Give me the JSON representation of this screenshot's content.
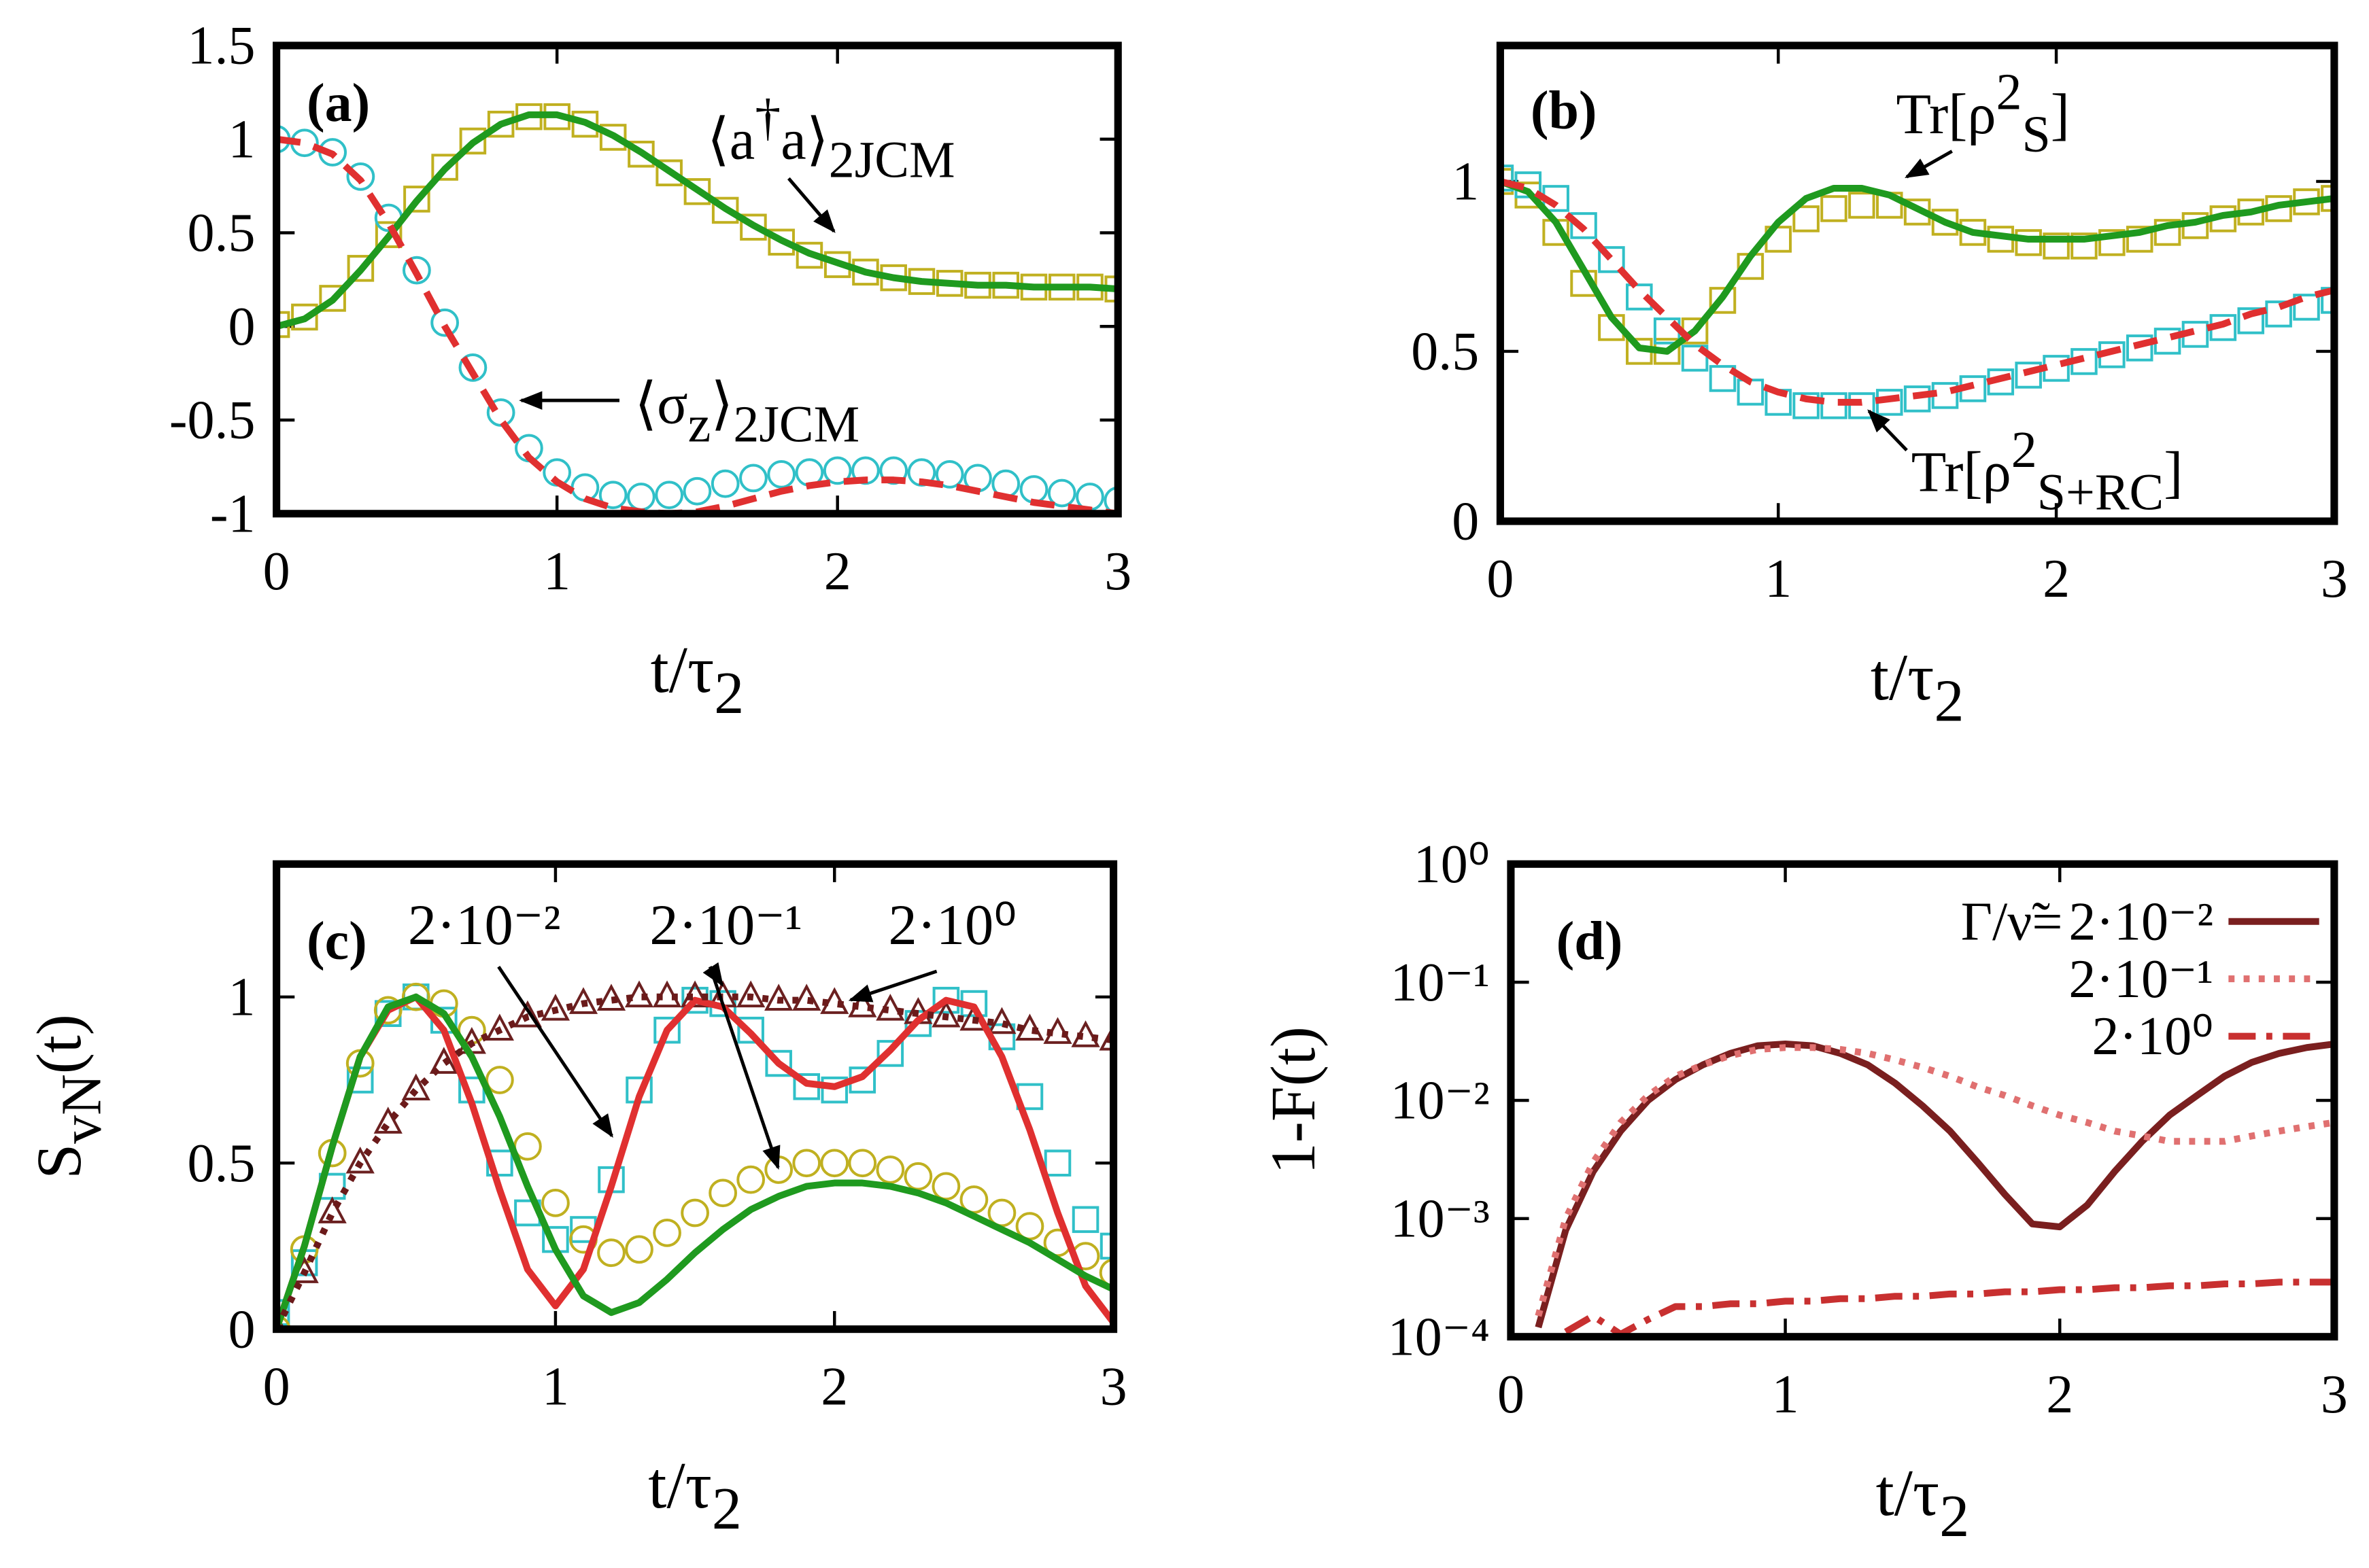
{
  "chart_data": [
    {
      "type": "line",
      "label": "(a)",
      "xlabel": [
        {
          "text": "t/τ"
        },
        {
          "text": "2",
          "shift": "sub"
        }
      ],
      "xlim": [
        0,
        3
      ],
      "ylim": [
        -1,
        1.5
      ],
      "xticks": [
        0,
        1,
        2,
        3
      ],
      "yticks": [
        -1,
        -0.5,
        0,
        0.5,
        1,
        1.5
      ],
      "x": [
        0,
        0.1,
        0.2,
        0.3,
        0.4,
        0.5,
        0.6,
        0.7,
        0.8,
        0.9,
        1,
        1.1,
        1.2,
        1.3,
        1.4,
        1.5,
        1.6,
        1.7,
        1.8,
        1.9,
        2,
        2.1,
        2.2,
        2.3,
        2.4,
        2.5,
        2.6,
        2.7,
        2.8,
        2.9,
        3
      ],
      "series": [
        {
          "color": "#c0b020",
          "marker": "square",
          "values": [
            0.01,
            0.05,
            0.15,
            0.31,
            0.49,
            0.68,
            0.85,
            0.99,
            1.08,
            1.12,
            1.12,
            1.08,
            1.01,
            0.92,
            0.82,
            0.72,
            0.62,
            0.53,
            0.45,
            0.38,
            0.33,
            0.29,
            0.26,
            0.24,
            0.23,
            0.22,
            0.22,
            0.21,
            0.21,
            0.21,
            0.2
          ]
        },
        {
          "color": "#30c0c8",
          "marker": "circle",
          "values": [
            1,
            0.98,
            0.93,
            0.8,
            0.58,
            0.3,
            0.02,
            -0.22,
            -0.46,
            -0.65,
            -0.78,
            -0.86,
            -0.9,
            -0.91,
            -0.9,
            -0.88,
            -0.84,
            -0.81,
            -0.79,
            -0.78,
            -0.77,
            -0.77,
            -0.77,
            -0.78,
            -0.79,
            -0.81,
            -0.84,
            -0.87,
            -0.89,
            -0.91,
            -0.93
          ]
        },
        {
          "color": "#1f9a1f",
          "values": [
            0,
            0.04,
            0.14,
            0.3,
            0.48,
            0.67,
            0.84,
            0.98,
            1.08,
            1.13,
            1.13,
            1.09,
            1.02,
            0.93,
            0.83,
            0.73,
            0.63,
            0.54,
            0.46,
            0.39,
            0.34,
            0.29,
            0.26,
            0.24,
            0.23,
            0.22,
            0.22,
            0.21,
            0.21,
            0.21,
            0.2
          ]
        },
        {
          "color": "#e03030",
          "dash": "dashed",
          "values": [
            1,
            0.98,
            0.92,
            0.78,
            0.55,
            0.28,
            0,
            -0.25,
            -0.5,
            -0.7,
            -0.83,
            -0.92,
            -0.97,
            -0.99,
            -1,
            -0.99,
            -0.96,
            -0.92,
            -0.88,
            -0.85,
            -0.83,
            -0.82,
            -0.82,
            -0.83,
            -0.85,
            -0.88,
            -0.91,
            -0.94,
            -0.96,
            -0.98,
            -1
          ]
        }
      ],
      "annotations": [
        [
          {
            "text": "⟨a"
          },
          {
            "text": "†",
            "shift": "sup"
          },
          {
            "text": "a⟩"
          },
          {
            "text": "2JCM",
            "shift": "sub"
          }
        ],
        [
          {
            "text": "⟨σ"
          },
          {
            "text": "z",
            "shift": "sub"
          },
          {
            "text": "⟩"
          },
          {
            "text": "2JCM",
            "shift": "sub"
          }
        ]
      ]
    },
    {
      "type": "line",
      "label": "(b)",
      "xlabel": [
        {
          "text": "t/τ"
        },
        {
          "text": "2",
          "shift": "sub"
        }
      ],
      "xlim": [
        0,
        3
      ],
      "ylim": [
        0,
        1.4
      ],
      "xticks": [
        0,
        1,
        2,
        3
      ],
      "yticks": [
        0,
        0.5,
        1
      ],
      "x": [
        0,
        0.1,
        0.2,
        0.3,
        0.4,
        0.5,
        0.6,
        0.7,
        0.8,
        0.9,
        1,
        1.1,
        1.2,
        1.3,
        1.4,
        1.5,
        1.6,
        1.7,
        1.8,
        1.9,
        2,
        2.1,
        2.2,
        2.3,
        2.4,
        2.5,
        2.6,
        2.7,
        2.8,
        2.9,
        3
      ],
      "series": [
        {
          "color": "#c0b020",
          "marker": "square",
          "values": [
            1,
            0.96,
            0.85,
            0.7,
            0.57,
            0.5,
            0.5,
            0.56,
            0.65,
            0.75,
            0.83,
            0.89,
            0.92,
            0.93,
            0.93,
            0.91,
            0.88,
            0.85,
            0.83,
            0.82,
            0.81,
            0.81,
            0.82,
            0.83,
            0.85,
            0.87,
            0.89,
            0.91,
            0.92,
            0.94,
            0.95
          ]
        },
        {
          "color": "#30c0c8",
          "marker": "square",
          "values": [
            1.01,
            0.99,
            0.95,
            0.87,
            0.77,
            0.66,
            0.56,
            0.48,
            0.42,
            0.38,
            0.35,
            0.34,
            0.34,
            0.34,
            0.35,
            0.36,
            0.37,
            0.39,
            0.41,
            0.43,
            0.45,
            0.47,
            0.49,
            0.51,
            0.53,
            0.55,
            0.57,
            0.59,
            0.61,
            0.63,
            0.65
          ]
        },
        {
          "color": "#1f9a1f",
          "values": [
            1,
            0.97,
            0.88,
            0.74,
            0.6,
            0.51,
            0.5,
            0.56,
            0.66,
            0.78,
            0.88,
            0.95,
            0.98,
            0.98,
            0.96,
            0.92,
            0.88,
            0.85,
            0.84,
            0.83,
            0.83,
            0.83,
            0.84,
            0.85,
            0.87,
            0.88,
            0.9,
            0.91,
            0.93,
            0.94,
            0.95
          ]
        },
        {
          "color": "#e03030",
          "dash": "dashed",
          "values": [
            1,
            0.98,
            0.93,
            0.86,
            0.77,
            0.68,
            0.6,
            0.52,
            0.46,
            0.41,
            0.38,
            0.36,
            0.35,
            0.35,
            0.36,
            0.37,
            0.38,
            0.4,
            0.42,
            0.44,
            0.46,
            0.48,
            0.5,
            0.52,
            0.54,
            0.56,
            0.58,
            0.61,
            0.63,
            0.66,
            0.68
          ]
        }
      ],
      "annotations": [
        [
          {
            "text": "Tr[ρ"
          },
          {
            "text": "2",
            "shift": "sup"
          },
          {
            "text": "S",
            "shift": "sub"
          },
          {
            "text": "]"
          }
        ],
        [
          {
            "text": "Tr[ρ"
          },
          {
            "text": "2",
            "shift": "sup"
          },
          {
            "text": "S+RC",
            "shift": "sub"
          },
          {
            "text": "]"
          }
        ]
      ]
    },
    {
      "type": "line",
      "label": "(c)",
      "xlabel": [
        {
          "text": "t/τ"
        },
        {
          "text": "2",
          "shift": "sub"
        }
      ],
      "ylabel": [
        {
          "text": "S"
        },
        {
          "text": "vN",
          "shift": "sub"
        },
        {
          "text": "(t)"
        }
      ],
      "xlim": [
        0,
        3
      ],
      "ylim": [
        0,
        1.4
      ],
      "xticks": [
        0,
        1,
        2,
        3
      ],
      "yticks": [
        0,
        0.5,
        1
      ],
      "x": [
        0,
        0.1,
        0.2,
        0.3,
        0.4,
        0.5,
        0.6,
        0.7,
        0.8,
        0.9,
        1,
        1.1,
        1.2,
        1.3,
        1.4,
        1.5,
        1.6,
        1.7,
        1.8,
        1.9,
        2,
        2.1,
        2.2,
        2.3,
        2.4,
        2.5,
        2.6,
        2.7,
        2.8,
        2.9,
        3
      ],
      "series": [
        {
          "color": "#30c0c8",
          "marker": "square",
          "values": [
            0.05,
            0.2,
            0.43,
            0.75,
            0.95,
            1,
            0.93,
            0.72,
            0.5,
            0.35,
            0.27,
            0.3,
            0.45,
            0.72,
            0.9,
            0.99,
            0.98,
            0.9,
            0.8,
            0.73,
            0.72,
            0.75,
            0.83,
            0.92,
            0.99,
            0.98,
            0.88,
            0.7,
            0.5,
            0.33,
            0.25
          ]
        },
        {
          "color": "#c0b020",
          "marker": "circle",
          "values": [
            0,
            0.24,
            0.53,
            0.8,
            0.96,
            1,
            0.98,
            0.9,
            0.75,
            0.55,
            0.38,
            0.27,
            0.23,
            0.24,
            0.29,
            0.35,
            0.41,
            0.45,
            0.48,
            0.5,
            0.5,
            0.5,
            0.48,
            0.46,
            0.43,
            0.39,
            0.35,
            0.31,
            0.26,
            0.22,
            0.17
          ]
        },
        {
          "color": "#6b2020",
          "marker": "triangle",
          "values": [
            0,
            0.17,
            0.35,
            0.5,
            0.62,
            0.72,
            0.8,
            0.86,
            0.9,
            0.94,
            0.96,
            0.98,
            0.99,
            1,
            1,
            1,
            1,
            1,
            0.99,
            0.99,
            0.98,
            0.97,
            0.96,
            0.95,
            0.94,
            0.93,
            0.92,
            0.9,
            0.89,
            0.88,
            0.87
          ]
        },
        {
          "color": "#e03030",
          "values": [
            0,
            0.25,
            0.55,
            0.82,
            0.96,
            1,
            0.9,
            0.68,
            0.42,
            0.18,
            0.07,
            0.18,
            0.43,
            0.7,
            0.9,
            0.99,
            0.97,
            0.89,
            0.8,
            0.74,
            0.73,
            0.76,
            0.84,
            0.93,
            0.99,
            0.97,
            0.82,
            0.6,
            0.35,
            0.13,
            0.02
          ]
        },
        {
          "color": "#1f9a1f",
          "values": [
            0,
            0.25,
            0.55,
            0.82,
            0.97,
            1,
            0.95,
            0.82,
            0.64,
            0.43,
            0.24,
            0.1,
            0.05,
            0.08,
            0.15,
            0.23,
            0.3,
            0.36,
            0.4,
            0.43,
            0.44,
            0.44,
            0.43,
            0.41,
            0.38,
            0.34,
            0.3,
            0.26,
            0.21,
            0.16,
            0.12
          ]
        },
        {
          "color": "#6b1a1a",
          "dash": "dotted",
          "values": [
            0,
            0.17,
            0.35,
            0.5,
            0.62,
            0.72,
            0.8,
            0.86,
            0.9,
            0.94,
            0.96,
            0.98,
            0.99,
            1,
            1,
            1,
            1,
            1,
            0.99,
            0.99,
            0.98,
            0.97,
            0.96,
            0.95,
            0.94,
            0.93,
            0.92,
            0.9,
            0.89,
            0.88,
            0.87
          ]
        }
      ],
      "annotations": [
        [
          {
            "text": "2·10⁻²"
          }
        ],
        [
          {
            "text": "2·10⁻¹"
          }
        ],
        [
          {
            "text": "2·10⁰"
          }
        ]
      ]
    },
    {
      "type": "line",
      "label": "(d)",
      "xlabel": [
        {
          "text": "t/τ"
        },
        {
          "text": "2",
          "shift": "sub"
        }
      ],
      "ylabel": [
        {
          "text": "1-F(t)"
        }
      ],
      "ylog": true,
      "legend": "upper right",
      "legend_title": "Γ/ν̃=",
      "xlim": [
        0,
        3
      ],
      "ylim": [
        0.0001,
        1
      ],
      "xticks": [
        0,
        1,
        2,
        3
      ],
      "yticks": [
        {
          "value": 0.0001,
          "label": "10⁻⁴"
        },
        {
          "value": 0.001,
          "label": "10⁻³"
        },
        {
          "value": 0.01,
          "label": "10⁻²"
        },
        {
          "value": 0.1,
          "label": "10⁻¹"
        },
        {
          "value": 1,
          "label": "10⁰"
        }
      ],
      "x": [
        0,
        0.1,
        0.2,
        0.3,
        0.4,
        0.5,
        0.6,
        0.7,
        0.8,
        0.9,
        1,
        1.1,
        1.2,
        1.3,
        1.4,
        1.5,
        1.6,
        1.7,
        1.8,
        1.9,
        2,
        2.1,
        2.2,
        2.3,
        2.4,
        2.5,
        2.6,
        2.7,
        2.8,
        2.9,
        3
      ],
      "series": [
        {
          "name": "2·10⁻²",
          "color": "#7a1f1f",
          "values": [
            null,
            0.00012,
            0.0008,
            0.0025,
            0.0055,
            0.01,
            0.015,
            0.02,
            0.025,
            0.029,
            0.03,
            0.029,
            0.025,
            0.02,
            0.014,
            0.009,
            0.0055,
            0.003,
            0.0016,
            0.0009,
            0.00085,
            0.0013,
            0.0025,
            0.0045,
            0.0075,
            0.011,
            0.016,
            0.021,
            0.025,
            0.028,
            0.03
          ]
        },
        {
          "name": "2·10⁻¹",
          "color": "#e07070",
          "dash": "dotted",
          "values": [
            null,
            0.00015,
            0.001,
            0.003,
            0.0065,
            0.011,
            0.016,
            0.02,
            0.024,
            0.027,
            0.028,
            0.028,
            0.027,
            0.025,
            0.022,
            0.019,
            0.016,
            0.013,
            0.011,
            0.009,
            0.0075,
            0.0065,
            0.0055,
            0.005,
            0.0045,
            0.0045,
            0.0045,
            0.005,
            0.0055,
            0.006,
            0.0065
          ]
        },
        {
          "name": "2·10⁰",
          "color": "#c83030",
          "dash": "dashdot",
          "values": [
            null,
            null,
            0.00011,
            0.00015,
            0.000105,
            0.00014,
            0.00018,
            0.00018,
            0.00019,
            0.00019,
            0.0002,
            0.0002,
            0.00021,
            0.00021,
            0.00022,
            0.00022,
            0.00023,
            0.00023,
            0.00024,
            0.00024,
            0.00025,
            0.00025,
            0.00026,
            0.00026,
            0.00027,
            0.00027,
            0.00028,
            0.00028,
            0.00029,
            0.00029,
            0.00029
          ]
        }
      ]
    }
  ]
}
